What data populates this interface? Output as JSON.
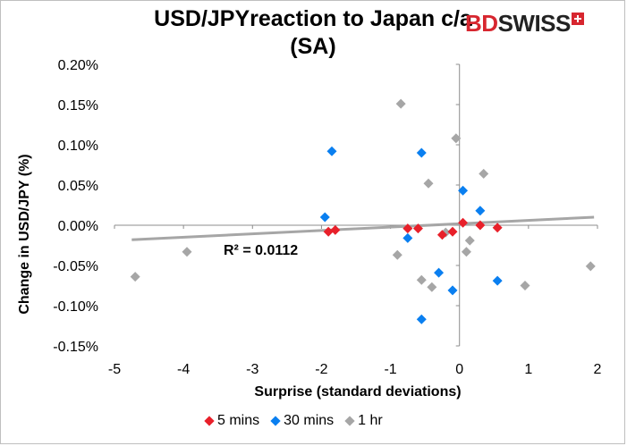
{
  "title": "USD/JPYreaction to Japan c/a (SA)",
  "logo": {
    "part1": "BD",
    "part2": "SWISS",
    "icon": "swiss-cross-icon",
    "color": "#d7262f"
  },
  "chart_data": {
    "type": "scatter",
    "title": "USD/JPYreaction to Japan c/a (SA)",
    "xlabel": "Surprise (standard deviations)",
    "ylabel": "Change in USD/JPY  (%)",
    "xlim": [
      -5,
      2
    ],
    "ylim": [
      -0.15,
      0.2
    ],
    "x_ticks": [
      "-5",
      "-4",
      "-3",
      "-2",
      "-1",
      "0",
      "1",
      "2"
    ],
    "x_tick_values": [
      -5,
      -4,
      -3,
      -2,
      -1,
      0,
      1,
      2
    ],
    "y_ticks": [
      "0.20%",
      "0.15%",
      "0.10%",
      "0.05%",
      "0.00%",
      "-0.05%",
      "-0.10%",
      "-0.15%"
    ],
    "y_tick_values": [
      0.2,
      0.15,
      0.1,
      0.05,
      0,
      -0.05,
      -0.1,
      -0.15
    ],
    "grid": false,
    "legend_position": "bottom",
    "series": [
      {
        "name": "5 mins",
        "color": "#e8202a",
        "points": [
          [
            -1.9,
            -0.008
          ],
          [
            -1.8,
            -0.006
          ],
          [
            -0.75,
            -0.004
          ],
          [
            -0.6,
            -0.004
          ],
          [
            -0.25,
            -0.012
          ],
          [
            -0.1,
            -0.008
          ],
          [
            0.05,
            0.003
          ],
          [
            0.3,
            0.0
          ],
          [
            0.55,
            -0.003
          ]
        ]
      },
      {
        "name": "30 mins",
        "color": "#0a7ff0",
        "points": [
          [
            -1.95,
            0.01
          ],
          [
            -1.85,
            0.092
          ],
          [
            -0.55,
            0.09
          ],
          [
            -0.75,
            -0.016
          ],
          [
            -0.3,
            -0.059
          ],
          [
            -0.1,
            -0.081
          ],
          [
            0.05,
            0.043
          ],
          [
            0.3,
            0.018
          ],
          [
            -0.55,
            -0.117
          ],
          [
            0.55,
            -0.069
          ]
        ]
      },
      {
        "name": "1 hr",
        "color": "#a6a6a6",
        "points": [
          [
            -4.7,
            -0.064
          ],
          [
            -3.95,
            -0.033
          ],
          [
            -0.85,
            0.151
          ],
          [
            -0.45,
            0.052
          ],
          [
            -0.05,
            0.108
          ],
          [
            0.35,
            0.064
          ],
          [
            0.1,
            -0.033
          ],
          [
            0.15,
            -0.019
          ],
          [
            -0.9,
            -0.037
          ],
          [
            -0.4,
            -0.077
          ],
          [
            -0.2,
            -0.009
          ],
          [
            0.95,
            -0.075
          ],
          [
            1.9,
            -0.051
          ],
          [
            -0.55,
            -0.068
          ]
        ]
      }
    ],
    "trendline": {
      "color": "#a6a6a6",
      "x_start": -4.75,
      "y_start": -0.018,
      "x_end": 1.95,
      "y_end": 0.01,
      "r_squared_label": "R² = 0.0112"
    }
  }
}
